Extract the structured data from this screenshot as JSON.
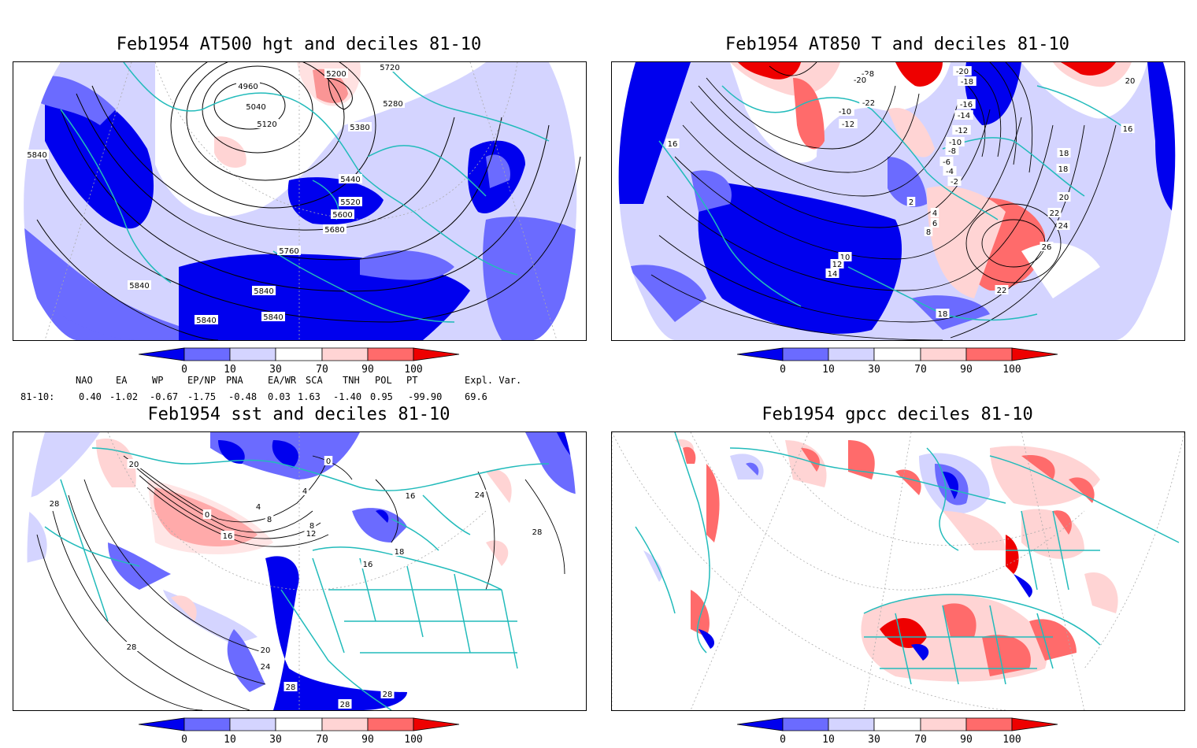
{
  "panels": [
    {
      "title": "Feb1954 AT500 hgt and deciles 81-10",
      "contour_labels": [
        "4960",
        "5040",
        "5120",
        "5200",
        "5280",
        "5380",
        "5440",
        "5520",
        "5600",
        "5680",
        "5760",
        "5840",
        "5840",
        "5840",
        "5840",
        "5840",
        "5720"
      ]
    },
    {
      "title": "Feb1954 AT850 T and deciles 81-10",
      "contour_labels": [
        "-28",
        "-20",
        "-22",
        "-20",
        "-18",
        "-16",
        "-14",
        "-12",
        "-10",
        "-8",
        "-6",
        "-4",
        "-2",
        "2",
        "4",
        "6",
        "8",
        "10",
        "12",
        "14",
        "16",
        "16",
        "18",
        "18",
        "20",
        "20",
        "22",
        "22",
        "24",
        "26",
        "18",
        "-10",
        "-12"
      ]
    },
    {
      "title": "Feb1954 sst and deciles 81-10",
      "contour_labels": [
        "20",
        "28",
        "0",
        "4",
        "8",
        "12",
        "16",
        "16",
        "18",
        "24",
        "28",
        "28",
        "20",
        "24",
        "28",
        "28",
        "28",
        "0",
        "4",
        "8",
        "16"
      ]
    },
    {
      "title": "Feb1954 gpcc deciles 81-10",
      "contour_labels": []
    }
  ],
  "colorbar": {
    "ticks": [
      "0",
      "10",
      "30",
      "70",
      "90",
      "100"
    ],
    "colors": [
      "#0000ee",
      "#6b6bff",
      "#d4d4ff",
      "#ffffff",
      "#ffd4d4",
      "#ff6b6b",
      "#ee0000"
    ]
  },
  "teleconnections": {
    "headers": [
      "NAO",
      "EA",
      "WP",
      "EP/NP",
      "PNA",
      "EA/WR",
      "SCA",
      "TNH",
      "POL",
      "PT",
      "Expl. Var."
    ],
    "row_label": "81-10:",
    "values": [
      "0.40",
      "-1.02",
      "-0.67",
      "-1.75",
      "-0.48",
      "0.03",
      "1.63",
      "-1.40",
      "0.95",
      "-99.90",
      "69.6"
    ]
  },
  "colors": {
    "coast": "#22bbbb",
    "contour": "#000000"
  }
}
